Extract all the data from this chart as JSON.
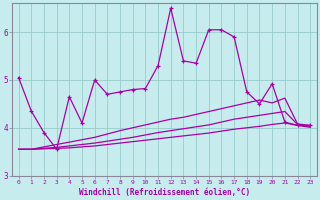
{
  "xlabel": "Windchill (Refroidissement éolien,°C)",
  "background_color": "#c6ecee",
  "grid_color": "#99cccc",
  "line_color": "#aa00aa",
  "spine_color": "#888899",
  "xlim": [
    -0.5,
    23.5
  ],
  "ylim": [
    3.2,
    6.6
  ],
  "yticks": [
    3,
    4,
    5,
    6
  ],
  "xticks": [
    0,
    1,
    2,
    3,
    4,
    5,
    6,
    7,
    8,
    9,
    10,
    11,
    12,
    13,
    14,
    15,
    16,
    17,
    18,
    19,
    20,
    21,
    22,
    23
  ],
  "series1_x": [
    0,
    1,
    2,
    3,
    4,
    5,
    6,
    7,
    8,
    9,
    10,
    11,
    12,
    13,
    14,
    15,
    16,
    17,
    18,
    19,
    20,
    21,
    22,
    23
  ],
  "series1_y": [
    5.05,
    4.35,
    3.9,
    3.55,
    4.65,
    4.1,
    5.0,
    4.7,
    4.75,
    4.8,
    4.82,
    5.3,
    6.5,
    5.4,
    5.35,
    6.05,
    6.05,
    5.9,
    4.75,
    4.5,
    4.92,
    4.12,
    4.05,
    4.05
  ],
  "series2_x": [
    0,
    1,
    2,
    3,
    4,
    5,
    6,
    7,
    8,
    9,
    10,
    11,
    12,
    13,
    14,
    15,
    16,
    17,
    18,
    19,
    20,
    21,
    22,
    23
  ],
  "series2_y": [
    3.55,
    3.55,
    3.6,
    3.65,
    3.7,
    3.75,
    3.8,
    3.87,
    3.94,
    4.0,
    4.06,
    4.12,
    4.18,
    4.22,
    4.28,
    4.34,
    4.4,
    4.46,
    4.52,
    4.58,
    4.52,
    4.62,
    4.08,
    4.05
  ],
  "series3_x": [
    0,
    1,
    2,
    3,
    4,
    5,
    6,
    7,
    8,
    9,
    10,
    11,
    12,
    13,
    14,
    15,
    16,
    17,
    18,
    19,
    20,
    21,
    22,
    23
  ],
  "series3_y": [
    3.55,
    3.55,
    3.57,
    3.59,
    3.62,
    3.65,
    3.68,
    3.72,
    3.76,
    3.8,
    3.85,
    3.9,
    3.94,
    3.98,
    4.02,
    4.06,
    4.12,
    4.18,
    4.22,
    4.26,
    4.3,
    4.34,
    4.07,
    4.03
  ],
  "series4_x": [
    0,
    1,
    2,
    3,
    4,
    5,
    6,
    7,
    8,
    9,
    10,
    11,
    12,
    13,
    14,
    15,
    16,
    17,
    18,
    19,
    20,
    21,
    22,
    23
  ],
  "series4_y": [
    3.55,
    3.55,
    3.56,
    3.57,
    3.58,
    3.6,
    3.62,
    3.65,
    3.68,
    3.71,
    3.74,
    3.77,
    3.8,
    3.83,
    3.86,
    3.89,
    3.93,
    3.97,
    4.0,
    4.03,
    4.07,
    4.1,
    4.05,
    4.01
  ]
}
